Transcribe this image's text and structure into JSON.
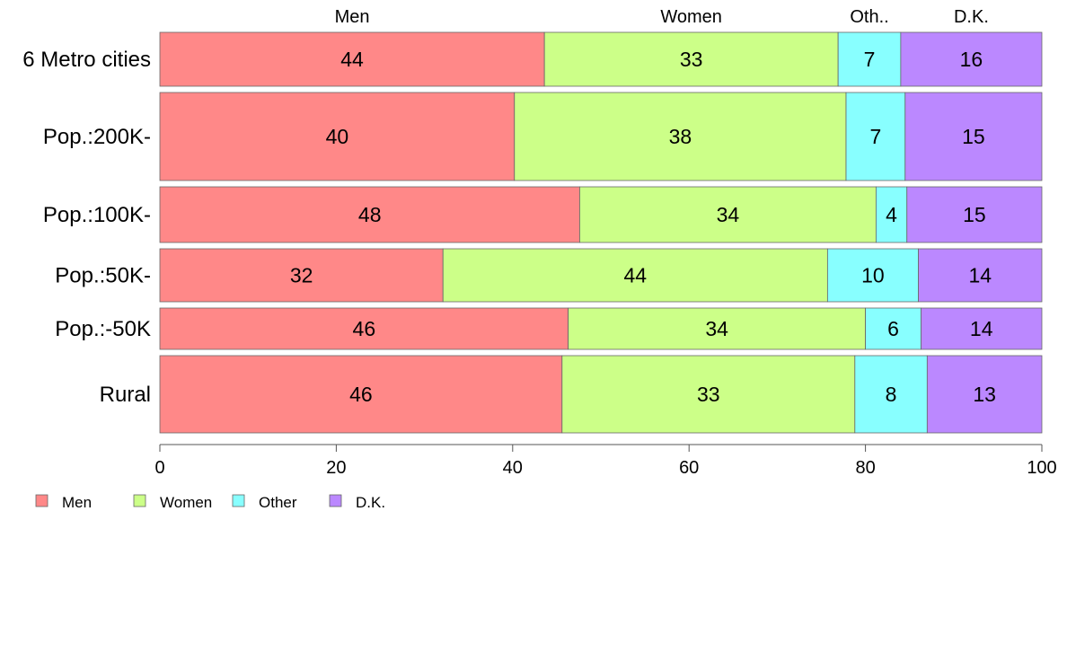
{
  "chart_data": {
    "type": "bar",
    "orientation": "horizontal",
    "stacked": true,
    "categories": [
      "6 Metro cities",
      "Pop.:200K-",
      "Pop.:100K-",
      "Pop.:50K-",
      "Pop.:-50K",
      "Rural"
    ],
    "column_headers": [
      "Men",
      "Women",
      "Oth..",
      "D.K."
    ],
    "series": [
      {
        "name": "Men",
        "color": "#ff8888",
        "values": [
          43.6,
          40.2,
          47.6,
          32.1,
          46.3,
          45.6
        ],
        "labels": [
          "44",
          "40",
          "48",
          "32",
          "46",
          "46"
        ]
      },
      {
        "name": "Women",
        "color": "#ccff88",
        "values": [
          33.3,
          37.6,
          33.6,
          43.6,
          33.7,
          33.2
        ],
        "labels": [
          "33",
          "38",
          "34",
          "44",
          "34",
          "33"
        ]
      },
      {
        "name": "Other",
        "color": "#88ffff",
        "values": [
          7.1,
          6.7,
          3.5,
          10.3,
          6.3,
          8.2
        ],
        "labels": [
          "7",
          "7",
          "4",
          "10",
          "6",
          "8"
        ]
      },
      {
        "name": "D.K.",
        "color": "#bb88ff",
        "values": [
          16.0,
          15.5,
          15.3,
          14.0,
          13.7,
          13.0
        ],
        "labels": [
          "16",
          "15",
          "15",
          "14",
          "14",
          "13"
        ]
      }
    ],
    "xlim": [
      0,
      100
    ],
    "x_ticks": [
      0,
      20,
      40,
      60,
      80,
      100
    ],
    "grid": false,
    "legend_position": "bottom-left"
  }
}
